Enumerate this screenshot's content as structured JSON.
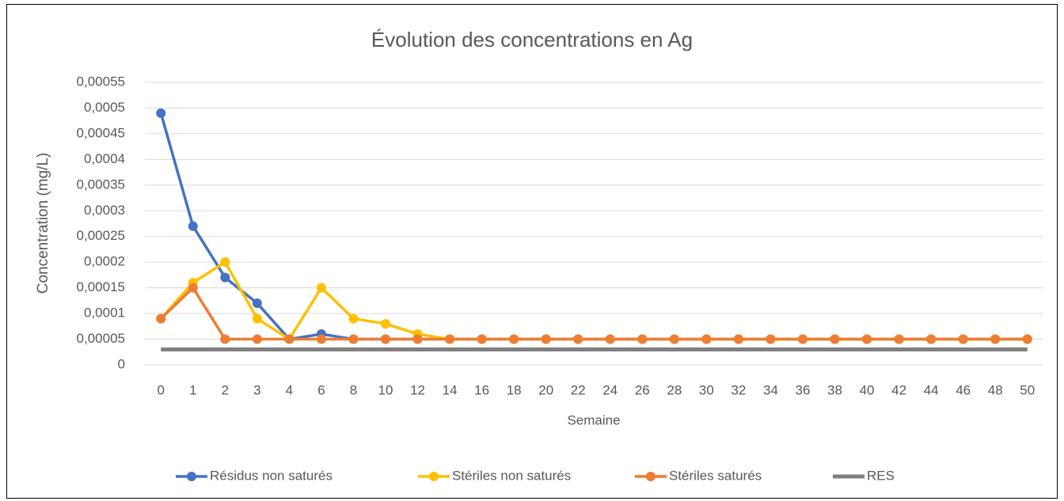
{
  "chart_data": {
    "type": "line",
    "title": "Évolution des concentrations en Ag",
    "x_label": "Semaine",
    "y_label": "Concentration (mg/L)",
    "categories": [
      "0",
      "1",
      "2",
      "3",
      "4",
      "6",
      "8",
      "10",
      "12",
      "14",
      "16",
      "18",
      "20",
      "22",
      "24",
      "26",
      "28",
      "30",
      "32",
      "34",
      "36",
      "38",
      "40",
      "42",
      "44",
      "46",
      "48",
      "50"
    ],
    "series": [
      {
        "name": "Résidus non saturés",
        "color": "#4472c4",
        "marker": true,
        "values": [
          0.00049,
          0.00027,
          0.00017,
          0.00012,
          5e-05,
          6e-05,
          5e-05,
          5e-05,
          5e-05,
          5e-05,
          5e-05,
          5e-05,
          5e-05,
          5e-05,
          5e-05,
          5e-05,
          5e-05,
          5e-05,
          5e-05,
          5e-05,
          5e-05,
          5e-05,
          5e-05,
          5e-05,
          5e-05,
          5e-05,
          5e-05,
          5e-05
        ]
      },
      {
        "name": "Stériles non saturés",
        "color": "#ffc000",
        "marker": true,
        "values": [
          9e-05,
          0.00016,
          0.0002,
          9e-05,
          5e-05,
          0.00015,
          9e-05,
          8e-05,
          6e-05,
          5e-05,
          5e-05,
          5e-05,
          5e-05,
          5e-05,
          5e-05,
          5e-05,
          5e-05,
          5e-05,
          5e-05,
          5e-05,
          5e-05,
          5e-05,
          5e-05,
          5e-05,
          5e-05,
          5e-05,
          5e-05,
          5e-05
        ]
      },
      {
        "name": "Stériles saturés",
        "color": "#ed7d31",
        "marker": true,
        "values": [
          9e-05,
          0.00015,
          5e-05,
          5e-05,
          5e-05,
          5e-05,
          5e-05,
          5e-05,
          5e-05,
          5e-05,
          5e-05,
          5e-05,
          5e-05,
          5e-05,
          5e-05,
          5e-05,
          5e-05,
          5e-05,
          5e-05,
          5e-05,
          5e-05,
          5e-05,
          5e-05,
          5e-05,
          5e-05,
          5e-05,
          5e-05,
          5e-05
        ]
      },
      {
        "name": "RES",
        "color": "#7f7f7f",
        "marker": false,
        "values": [
          3e-05,
          3e-05,
          3e-05,
          3e-05,
          3e-05,
          3e-05,
          3e-05,
          3e-05,
          3e-05,
          3e-05,
          3e-05,
          3e-05,
          3e-05,
          3e-05,
          3e-05,
          3e-05,
          3e-05,
          3e-05,
          3e-05,
          3e-05,
          3e-05,
          3e-05,
          3e-05,
          3e-05,
          3e-05,
          3e-05,
          3e-05,
          3e-05
        ]
      }
    ],
    "ylim": [
      0,
      0.00055
    ],
    "yticks": [
      0,
      {
        "value": 5e-05,
        "label": "0,00005"
      },
      {
        "value": 0.0001,
        "label": "0,0001"
      },
      {
        "value": 0.00015,
        "label": "0,00015"
      },
      {
        "value": 0.0002,
        "label": "0,0002"
      },
      {
        "value": 0.00025,
        "label": "0,00025"
      },
      {
        "value": 0.0003,
        "label": "0,0003"
      },
      {
        "value": 0.00035,
        "label": "0,00035"
      },
      {
        "value": 0.0004,
        "label": "0,0004"
      },
      {
        "value": 0.00045,
        "label": "0,00045"
      },
      {
        "value": 0.0005,
        "label": "0,0005"
      },
      {
        "value": 0.00055,
        "label": "0,00055"
      }
    ],
    "grid": true,
    "legend": "bottom"
  }
}
